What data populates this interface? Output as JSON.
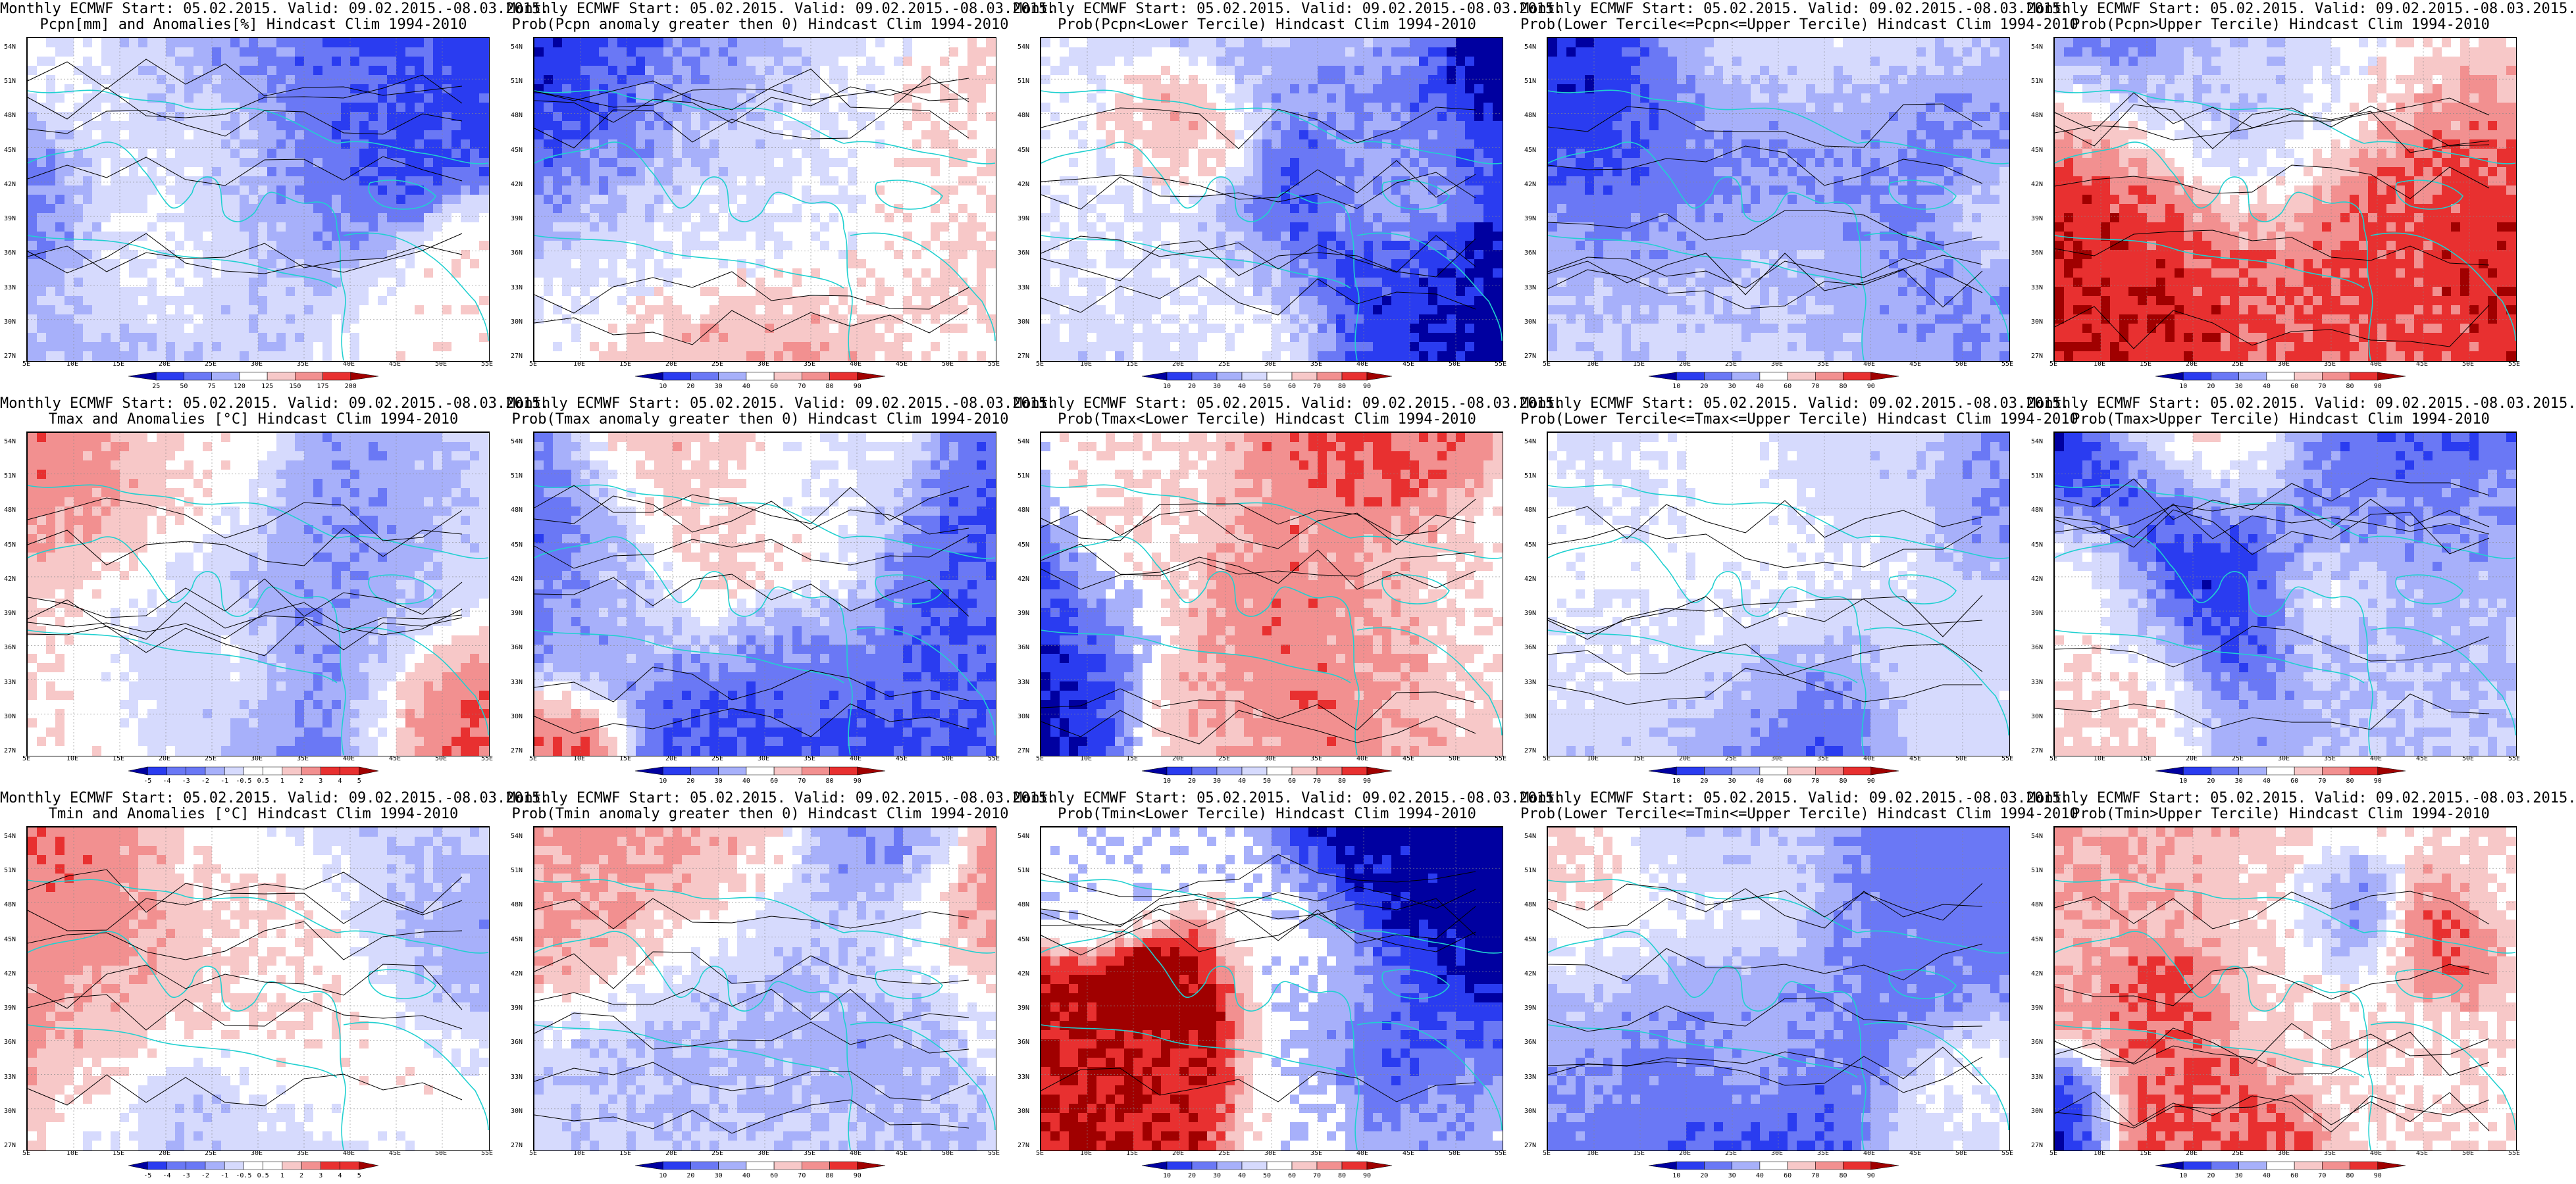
{
  "lat_ticks": [
    "54N",
    "51N",
    "48N",
    "45N",
    "42N",
    "39N",
    "36N",
    "33N",
    "30N",
    "27N"
  ],
  "lon_ticks": [
    "5E",
    "10E",
    "15E",
    "20E",
    "25E",
    "30E",
    "35E",
    "40E",
    "45E",
    "50E",
    "55E"
  ],
  "colors": {
    "deep_blue": "#0000a0",
    "blue": "#2a3cf0",
    "mid_blue": "#6a78f5",
    "light_blue": "#a7b0fa",
    "pale_blue": "#d6dafd",
    "white": "#ffffff",
    "pale_red": "#f7c8c8",
    "light_red": "#f29090",
    "red": "#e83030",
    "dark_red": "#a00000",
    "coast": "#20d0d0",
    "contour": "#000000"
  },
  "panels": [
    {
      "title1": "Monthly ECMWF Start: 05.02.2015. Valid: 09.02.2015.-08.03.2015.",
      "title2": "Pcpn[mm] and Anomalies[%] Hindcast Clim 1994-2010",
      "scale": [
        "25",
        "50",
        "75",
        "120",
        "125",
        "150",
        "175",
        "200"
      ],
      "scheme": "anom",
      "seed": 1
    },
    {
      "title1": "Monthly ECMWF Start: 05.02.2015. Valid: 09.02.2015.-08.03.2015.",
      "title2": "Prob(Pcpn anomaly greater then 0) Hindcast Clim 1994-2010",
      "scale": [
        "10",
        "20",
        "30",
        "40",
        "60",
        "70",
        "80",
        "90"
      ],
      "scheme": "prob",
      "seed": 2
    },
    {
      "title1": "Monthly ECMWF Start: 05.02.2015. Valid: 09.02.2015.-08.03.2015.",
      "title2": "Prob(Pcpn<Lower Tercile) Hindcast Clim 1994-2010",
      "scale": [
        "10",
        "20",
        "30",
        "40",
        "50",
        "60",
        "70",
        "80",
        "90"
      ],
      "scheme": "prob",
      "seed": 3
    },
    {
      "title1": "Monthly ECMWF Start: 05.02.2015. Valid: 09.02.2015.-08.03.2015.",
      "title2": "Prob(Lower Tercile<=Pcpn<=Upper Tercile) Hindcast Clim 1994-2010",
      "scale": [
        "10",
        "20",
        "30",
        "40",
        "60",
        "70",
        "80",
        "90"
      ],
      "scheme": "probblue",
      "seed": 4
    },
    {
      "title1": "Monthly ECMWF Start: 05.02.2015. Valid: 09.02.2015.-08.03.2015.",
      "title2": "Prob(Pcpn>Upper Tercile) Hindcast Clim 1994-2010",
      "scale": [
        "10",
        "20",
        "30",
        "40",
        "60",
        "70",
        "80",
        "90"
      ],
      "scheme": "prob",
      "seed": 5
    },
    {
      "title1": "Monthly ECMWF Start: 05.02.2015. Valid: 09.02.2015.-08.03.2015.",
      "title2": "Tmax and Anomalies [°C] Hindcast Clim 1994-2010",
      "scale": [
        "-5",
        "-4",
        "-3",
        "-2",
        "-1",
        "-0.5",
        "0.5",
        "1",
        "2",
        "3",
        "4",
        "5"
      ],
      "scheme": "tanom",
      "seed": 6
    },
    {
      "title1": "Monthly ECMWF Start: 05.02.2015. Valid: 09.02.2015.-08.03.2015.",
      "title2": "Prob(Tmax anomaly greater then 0) Hindcast Clim 1994-2010",
      "scale": [
        "10",
        "20",
        "30",
        "40",
        "60",
        "70",
        "80",
        "90"
      ],
      "scheme": "probTblue",
      "seed": 7
    },
    {
      "title1": "Monthly ECMWF Start: 05.02.2015. Valid: 09.02.2015.-08.03.2015.",
      "title2": "Prob(Tmax<Lower Tercile) Hindcast Clim 1994-2010",
      "scale": [
        "10",
        "20",
        "30",
        "40",
        "50",
        "60",
        "70",
        "80",
        "90"
      ],
      "scheme": "probTred",
      "seed": 8
    },
    {
      "title1": "Monthly ECMWF Start: 05.02.2015. Valid: 09.02.2015.-08.03.2015.",
      "title2": "Prob(Lower Tercile<=Tmax<=Upper Tercile) Hindcast Clim 1994-2010",
      "scale": [
        "10",
        "20",
        "30",
        "40",
        "60",
        "70",
        "80",
        "90"
      ],
      "scheme": "probblue",
      "seed": 9
    },
    {
      "title1": "Monthly ECMWF Start: 05.02.2015. Valid: 09.02.2015.-08.03.2015.",
      "title2": "Prob(Tmax>Upper Tercile) Hindcast Clim 1994-2010",
      "scale": [
        "10",
        "20",
        "30",
        "40",
        "60",
        "70",
        "80",
        "90"
      ],
      "scheme": "probTblue",
      "seed": 10
    },
    {
      "title1": "Monthly ECMWF Start: 05.02.2015. Valid: 09.02.2015.-08.03.2015.",
      "title2": "Tmin and Anomalies [°C] Hindcast Clim 1994-2010",
      "scale": [
        "-5",
        "-4",
        "-3",
        "-2",
        "-1",
        "-0.5",
        "0.5",
        "1",
        "2",
        "3",
        "4",
        "5"
      ],
      "scheme": "tanom",
      "seed": 11
    },
    {
      "title1": "Monthly ECMWF Start: 05.02.2015. Valid: 09.02.2015.-08.03.2015.",
      "title2": "Prob(Tmin anomaly greater then 0) Hindcast Clim 1994-2010",
      "scale": [
        "10",
        "20",
        "30",
        "40",
        "60",
        "70",
        "80",
        "90"
      ],
      "scheme": "probTblue",
      "seed": 12
    },
    {
      "title1": "Monthly ECMWF Start: 05.02.2015. Valid: 09.02.2015.-08.03.2015.",
      "title2": "Prob(Tmin<Lower Tercile) Hindcast Clim 1994-2010",
      "scale": [
        "10",
        "20",
        "30",
        "40",
        "50",
        "60",
        "70",
        "80",
        "90"
      ],
      "scheme": "probTred",
      "seed": 13
    },
    {
      "title1": "Monthly ECMWF Start: 05.02.2015. Valid: 09.02.2015.-08.03.2015.",
      "title2": "Prob(Lower Tercile<=Tmin<=Upper Tercile) Hindcast Clim 1994-2010",
      "scale": [
        "10",
        "20",
        "30",
        "40",
        "60",
        "70",
        "80",
        "90"
      ],
      "scheme": "probblue",
      "seed": 14
    },
    {
      "title1": "Monthly ECMWF Start: 05.02.2015. Valid: 09.02.2015.-08.03.2015.",
      "title2": "Prob(Tmin>Upper Tercile) Hindcast Clim 1994-2010",
      "scale": [
        "10",
        "20",
        "30",
        "40",
        "60",
        "70",
        "80",
        "90"
      ],
      "scheme": "probTblue",
      "seed": 15
    }
  ]
}
